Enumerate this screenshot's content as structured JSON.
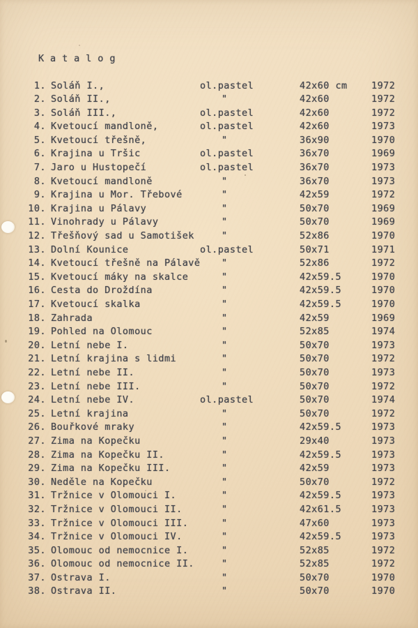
{
  "colors": {
    "paper": "#ecd7b8",
    "ink": "#44464d"
  },
  "catalog": {
    "heading": "K a t a l o g",
    "ditto_mark": "\"",
    "rows": [
      {
        "num": "1.",
        "title": "Soláň I.,",
        "medium": "ol.pastel",
        "dims": "42x60 cm",
        "year": "1972"
      },
      {
        "num": "2.",
        "title": "Soláň II.,",
        "medium": "\"",
        "dims": "42x60",
        "year": "1972"
      },
      {
        "num": "3.",
        "title": "Soláň III.,",
        "medium": "ol.pastel",
        "dims": "42x60",
        "year": "1972"
      },
      {
        "num": "4.",
        "title": "Kvetoucí mandloně,",
        "medium": "ol.pastel",
        "dims": "42x60",
        "year": "1973"
      },
      {
        "num": "5.",
        "title": "Kvetoucí třešně,",
        "medium": "\"",
        "dims": "36x90",
        "year": "1970"
      },
      {
        "num": "6.",
        "title": "Krajina u Tršic",
        "medium": "ol.pastel",
        "dims": "36x70",
        "year": "1969"
      },
      {
        "num": "7.",
        "title": "Jaro u Hustopečí",
        "medium": "ol.pastel",
        "dims": "36x70",
        "year": "1973"
      },
      {
        "num": "8.",
        "title": "Kvetoucí mandloně",
        "medium": "\"",
        "dims": "36x70",
        "year": "1973"
      },
      {
        "num": "9.",
        "title": "Krajina u Mor. Třebové",
        "medium": "\"",
        "dims": "42x59",
        "year": "1972"
      },
      {
        "num": "10.",
        "title": "Krajina u Pálavy",
        "medium": "\"",
        "dims": "50x70",
        "year": "1969"
      },
      {
        "num": "11.",
        "title": "Vinohrady u Pálavy",
        "medium": "\"",
        "dims": "50x70",
        "year": "1969"
      },
      {
        "num": "12.",
        "title": "Třešňový sad u Samotišek",
        "medium": "\"",
        "dims": "52x86",
        "year": "1970"
      },
      {
        "num": "13.",
        "title": "Dolní Kounice",
        "medium": "ol.pastel",
        "dims": "50x71",
        "year": "1971"
      },
      {
        "num": "14.",
        "title": "Kvetoucí třešně na Pálavě",
        "medium": "\"",
        "dims": "52x86",
        "year": "1972"
      },
      {
        "num": "15.",
        "title": "Kvetoucí máky na skalce",
        "medium": "\"",
        "dims": "42x59.5",
        "year": "1970"
      },
      {
        "num": "16.",
        "title": "Cesta do Droždína",
        "medium": "\"",
        "dims": "42x59.5",
        "year": "1970"
      },
      {
        "num": "17.",
        "title": "Kvetoucí skalka",
        "medium": "\"",
        "dims": "42x59.5",
        "year": "1970"
      },
      {
        "num": "18.",
        "title": "Zahrada",
        "medium": "\"",
        "dims": "42x59",
        "year": "1969"
      },
      {
        "num": "19.",
        "title": "Pohled na Olomouc",
        "medium": "\"",
        "dims": "52x85",
        "year": "1974"
      },
      {
        "num": "20.",
        "title": "Letní nebe I.",
        "medium": "\"",
        "dims": "50x70",
        "year": "1973"
      },
      {
        "num": "21.",
        "title": "Letní krajina s lidmi",
        "medium": "\"",
        "dims": "50x70",
        "year": "1972"
      },
      {
        "num": "22.",
        "title": "Letní nebe II.",
        "medium": "\"",
        "dims": "50x70",
        "year": "1973"
      },
      {
        "num": "23.",
        "title": "Letní nebe III.",
        "medium": "\"",
        "dims": "50x70",
        "year": "1972"
      },
      {
        "num": "24.",
        "title": "Letní nebe IV.",
        "medium": "ol.pastel",
        "dims": "50x70",
        "year": "1974"
      },
      {
        "num": "25.",
        "title": "Letní krajina",
        "medium": "\"",
        "dims": "50x70",
        "year": "1972"
      },
      {
        "num": "26.",
        "title": "Bouřkové mraky",
        "medium": "\"",
        "dims": "42x59.5",
        "year": "1973"
      },
      {
        "num": "27.",
        "title": "Zima na Kopečku",
        "medium": "\"",
        "dims": "29x40",
        "year": "1973"
      },
      {
        "num": "28.",
        "title": "Zima na Kopečku II.",
        "medium": "\"",
        "dims": "42x59.5",
        "year": "1973"
      },
      {
        "num": "29.",
        "title": "Zima na Kopečku III.",
        "medium": "\"",
        "dims": "42x59",
        "year": "1973"
      },
      {
        "num": "30.",
        "title": "Neděle na Kopečku",
        "medium": "\"",
        "dims": "50x70",
        "year": "1972"
      },
      {
        "num": "31.",
        "title": "Tržnice v Olomouci I.",
        "medium": "\"",
        "dims": "42x59.5",
        "year": "1973"
      },
      {
        "num": "32.",
        "title": "Tržnice v Olomouci II.",
        "medium": "\"",
        "dims": "42x61.5",
        "year": "1973"
      },
      {
        "num": "33.",
        "title": "Tržnice v Olomouci III.",
        "medium": "\"",
        "dims": "47x60",
        "year": "1973"
      },
      {
        "num": "34.",
        "title": "Tržnice v Olomouci IV.",
        "medium": "\"",
        "dims": "42x59.5",
        "year": "1973"
      },
      {
        "num": "35.",
        "title": "Olomouc od nemocnice I.",
        "medium": "\"",
        "dims": "52x85",
        "year": "1972"
      },
      {
        "num": "36.",
        "title": "Olomouc od nemocnice II.",
        "medium": "\"",
        "dims": "52x85",
        "year": "1972"
      },
      {
        "num": "37.",
        "title": "Ostrava I.",
        "medium": "\"",
        "dims": "50x70",
        "year": "1970"
      },
      {
        "num": "38.",
        "title": "Ostrava II.",
        "medium": "\"",
        "dims": "50x70",
        "year": "1970"
      }
    ]
  }
}
